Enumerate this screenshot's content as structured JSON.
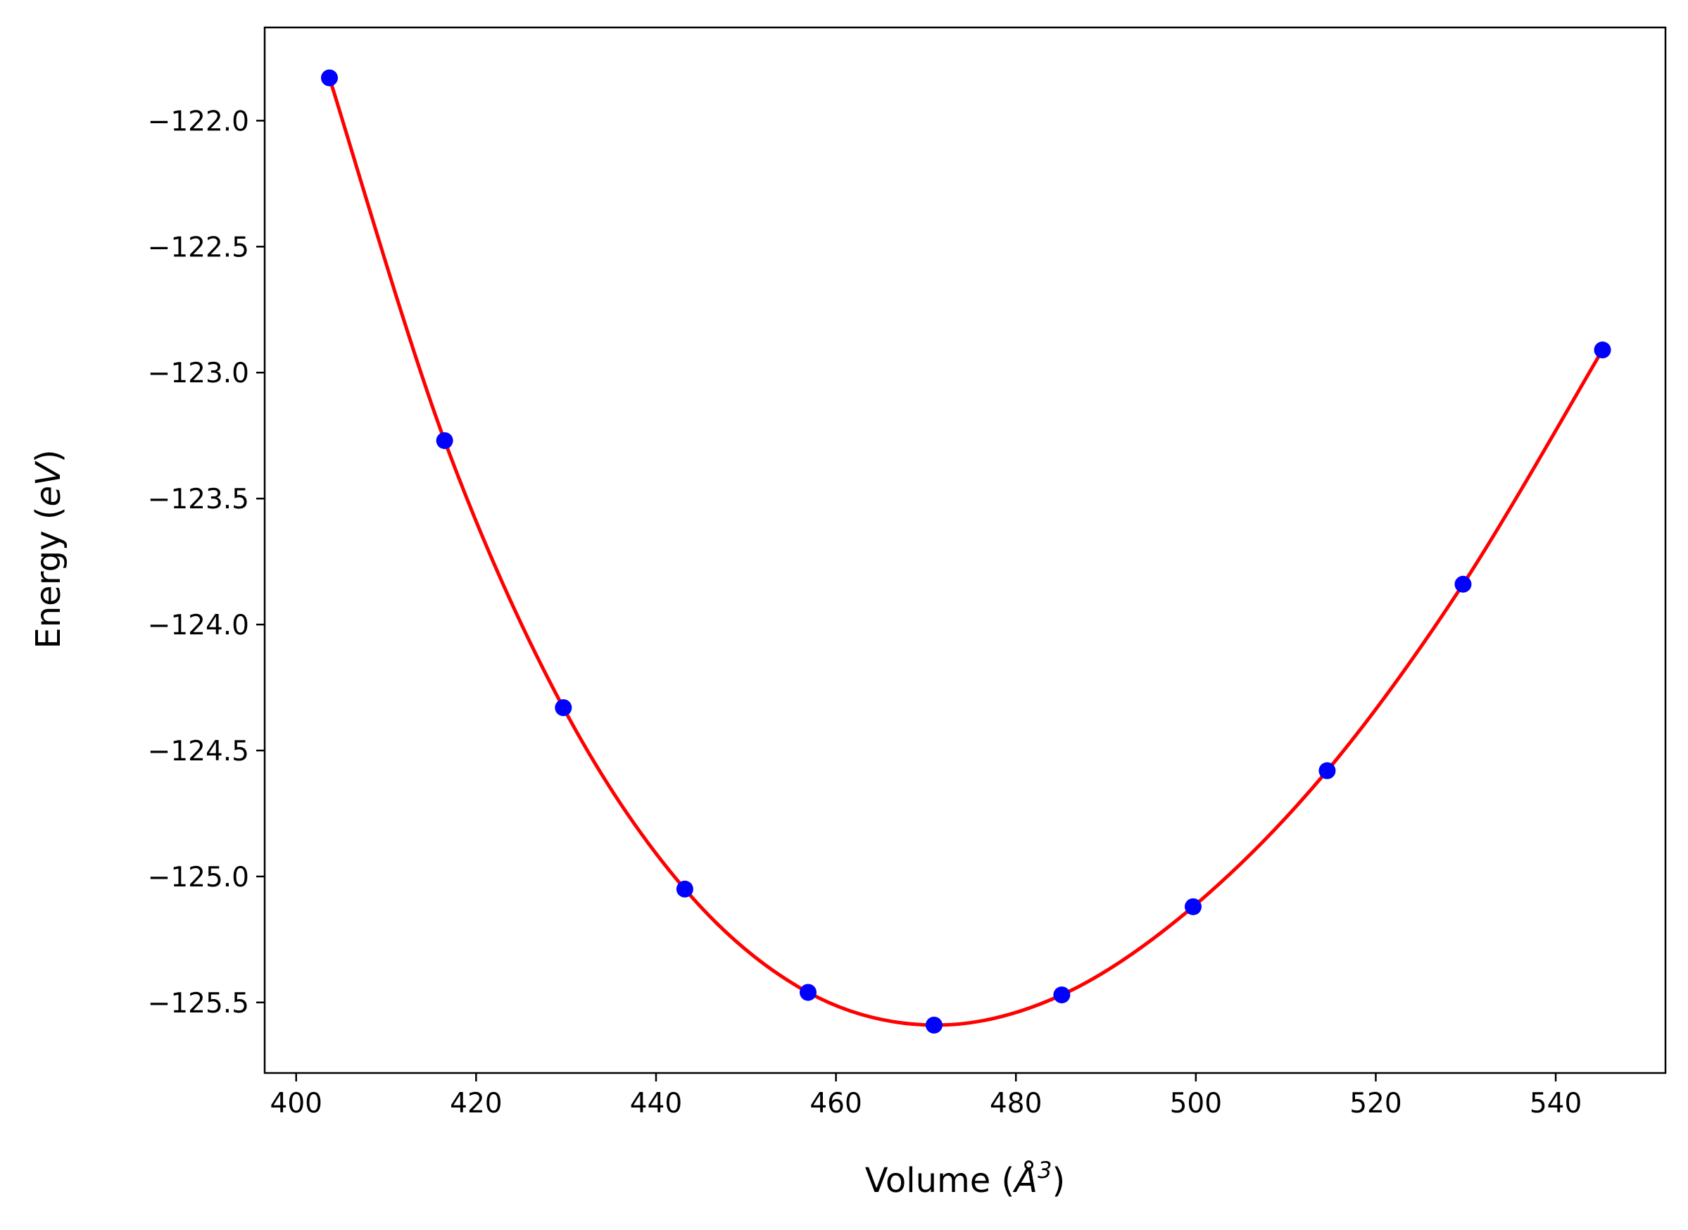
{
  "chart_data": {
    "type": "scatter",
    "xlabel": "Volume (",
    "xlabel_symbol": "Å",
    "xlabel_exponent": "3",
    "xlabel_close": ")",
    "ylabel": "Energy (",
    "ylabel_unit": "eV",
    "ylabel_close": ")",
    "xlim": [
      396.5,
      552.2
    ],
    "ylim": [
      -125.78,
      -121.63
    ],
    "xticks": [
      400,
      420,
      440,
      460,
      480,
      500,
      520,
      540
    ],
    "yticks": [
      -122.0,
      -122.5,
      -123.0,
      -123.5,
      -124.0,
      -124.5,
      -125.0,
      -125.5
    ],
    "xtick_labels": [
      "400",
      "420",
      "440",
      "460",
      "480",
      "500",
      "520",
      "540"
    ],
    "ytick_labels": [
      "−122.0",
      "−122.5",
      "−123.0",
      "−123.5",
      "−124.0",
      "−124.5",
      "−125.0",
      "−125.5"
    ],
    "grid": false,
    "series": [
      {
        "type": "scatter",
        "color": "#0000ff",
        "x": [
          403.7,
          416.5,
          429.7,
          443.2,
          456.9,
          470.9,
          485.1,
          499.7,
          514.6,
          529.7,
          545.2
        ],
        "y": [
          -121.83,
          -123.27,
          -124.33,
          -125.05,
          -125.46,
          -125.59,
          -125.47,
          -125.12,
          -124.58,
          -123.84,
          -122.91
        ]
      },
      {
        "type": "line",
        "color": "#ff0000",
        "x": [
          403.7,
          416.5,
          429.7,
          443.2,
          456.9,
          470.9,
          485.1,
          499.7,
          514.6,
          529.7,
          545.2
        ],
        "y": [
          -121.83,
          -123.27,
          -124.33,
          -125.05,
          -125.46,
          -125.59,
          -125.47,
          -125.12,
          -124.58,
          -123.84,
          -122.91
        ]
      }
    ]
  }
}
